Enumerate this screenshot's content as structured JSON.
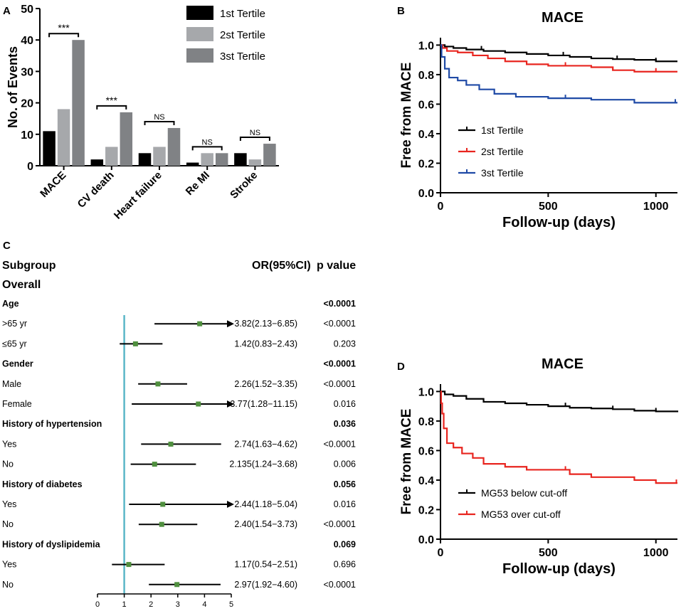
{
  "chart_data": [
    {
      "panel": "A",
      "type": "bar",
      "title": "",
      "ylabel": "No. of Events",
      "ylim": [
        0,
        50
      ],
      "yticks": [
        0,
        10,
        20,
        30,
        40,
        50
      ],
      "categories": [
        "MACE",
        "CV death",
        "Heart failure",
        "Re MI",
        "Stroke"
      ],
      "series": [
        {
          "name": "1st Tertile",
          "color": "#000000",
          "values": [
            11,
            2,
            4,
            1,
            4
          ]
        },
        {
          "name": "2st Tertile",
          "color": "#a6a8ab",
          "values": [
            18,
            6,
            6,
            4,
            2
          ]
        },
        {
          "name": "3st Tertile",
          "color": "#808285",
          "values": [
            40,
            17,
            12,
            4,
            7
          ]
        }
      ],
      "significance": [
        "***",
        "***",
        "NS",
        "NS",
        "NS"
      ],
      "legend": "top-right"
    },
    {
      "panel": "B",
      "type": "line",
      "title": "MACE",
      "xlabel": "Follow-up (days)",
      "ylabel": "Free from MACE",
      "xlim": [
        0,
        1100
      ],
      "ylim": [
        0,
        1.05
      ],
      "xticks": [
        0,
        500,
        1000
      ],
      "yticks": [
        "0.0",
        "0.2",
        "0.4",
        "0.6",
        "0.8",
        "1.0"
      ],
      "series": [
        {
          "name": "1st Tertile",
          "color": "#000000",
          "x": [
            0,
            20,
            60,
            120,
            200,
            300,
            400,
            500,
            600,
            700,
            800,
            900,
            1000,
            1100
          ],
          "y": [
            1.0,
            0.99,
            0.98,
            0.97,
            0.96,
            0.95,
            0.94,
            0.93,
            0.92,
            0.91,
            0.905,
            0.9,
            0.89,
            0.89
          ],
          "censor": [
            190,
            570,
            820,
            1000
          ]
        },
        {
          "name": "2st Tertile",
          "color": "#e8251f",
          "x": [
            0,
            10,
            30,
            80,
            150,
            220,
            300,
            400,
            500,
            700,
            800,
            900,
            1100
          ],
          "y": [
            1.0,
            0.98,
            0.96,
            0.95,
            0.93,
            0.91,
            0.89,
            0.87,
            0.86,
            0.85,
            0.83,
            0.82,
            0.82
          ],
          "censor": [
            580,
            800,
            1000
          ]
        },
        {
          "name": "3st Tertile",
          "color": "#1f4aa6",
          "x": [
            0,
            5,
            20,
            40,
            80,
            120,
            180,
            250,
            350,
            500,
            700,
            900,
            1100
          ],
          "y": [
            1.0,
            0.92,
            0.84,
            0.78,
            0.76,
            0.73,
            0.7,
            0.67,
            0.65,
            0.64,
            0.63,
            0.61,
            0.61
          ],
          "censor": [
            580,
            1090
          ]
        }
      ],
      "legend": "bottom-left"
    },
    {
      "panel": "C",
      "type": "forest",
      "header": {
        "subgroup": "Subgroup",
        "or": "OR(95%CI)",
        "p": "p value"
      },
      "overall_label": "Overall",
      "xlim": [
        0,
        5
      ],
      "xticks": [
        0,
        1,
        2,
        3,
        4,
        5
      ],
      "reference": 1,
      "rows": [
        {
          "label": "Age",
          "group": true,
          "p": "<0.0001"
        },
        {
          "label": ">65 yr",
          "or": 3.82,
          "lo": 2.13,
          "hi": 6.85,
          "text": "3.82(2.13−6.85)",
          "p": "<0.0001"
        },
        {
          "label": "≤65 yr",
          "or": 1.42,
          "lo": 0.83,
          "hi": 2.43,
          "text": "1.42(0.83−2.43)",
          "p": "0.203"
        },
        {
          "label": "Gender",
          "group": true,
          "p": "<0.0001"
        },
        {
          "label": "Male",
          "or": 2.26,
          "lo": 1.52,
          "hi": 3.35,
          "text": "2.26(1.52−3.35)",
          "p": "<0.0001"
        },
        {
          "label": "Female",
          "or": 3.77,
          "lo": 1.28,
          "hi": 11.15,
          "text": "3.77(1.28−11.15)",
          "p": "0.016"
        },
        {
          "label": "History of hypertension",
          "group": true,
          "p": "0.036"
        },
        {
          "label": "Yes",
          "or": 2.74,
          "lo": 1.63,
          "hi": 4.62,
          "text": "2.74(1.63−4.62)",
          "p": "<0.0001"
        },
        {
          "label": "No",
          "or": 2.135,
          "lo": 1.24,
          "hi": 3.68,
          "text": "2.135(1.24−3.68)",
          "p": "0.006"
        },
        {
          "label": "History of diabetes",
          "group": true,
          "p": "0.056"
        },
        {
          "label": "Yes",
          "or": 2.44,
          "lo": 1.18,
          "hi": 5.04,
          "text": "2.44(1.18−5.04)",
          "p": "0.016"
        },
        {
          "label": "No",
          "or": 2.4,
          "lo": 1.54,
          "hi": 3.73,
          "text": "2.40(1.54−3.73)",
          "p": "<0.0001"
        },
        {
          "label": "History of dyslipidemia",
          "group": true,
          "p": "0.069"
        },
        {
          "label": "Yes",
          "or": 1.17,
          "lo": 0.54,
          "hi": 2.51,
          "text": "1.17(0.54−2.51)",
          "p": "0.696"
        },
        {
          "label": "No",
          "or": 2.97,
          "lo": 1.92,
          "hi": 4.6,
          "text": "2.97(1.92−4.60)",
          "p": "<0.0001"
        }
      ],
      "colors": {
        "marker": "#4f8f3e",
        "reference_line": "#5bb7c8",
        "ci": "#000000"
      }
    },
    {
      "panel": "D",
      "type": "line",
      "title": "MACE",
      "xlabel": "Follow-up (days)",
      "ylabel": "Free from MACE",
      "xlim": [
        0,
        1100
      ],
      "ylim": [
        0,
        1.05
      ],
      "xticks": [
        0,
        500,
        1000
      ],
      "yticks": [
        "0.0",
        "0.2",
        "0.4",
        "0.6",
        "0.8",
        "1.0"
      ],
      "series": [
        {
          "name": "MG53 below cut-off",
          "color": "#000000",
          "x": [
            0,
            20,
            60,
            120,
            200,
            300,
            400,
            500,
            600,
            700,
            800,
            900,
            1000,
            1100
          ],
          "y": [
            1.0,
            0.98,
            0.97,
            0.95,
            0.93,
            0.92,
            0.91,
            0.9,
            0.89,
            0.885,
            0.88,
            0.87,
            0.865,
            0.86
          ],
          "censor": [
            580,
            800,
            1000
          ]
        },
        {
          "name": "MG53 over cut-off",
          "color": "#e8251f",
          "x": [
            0,
            3,
            8,
            15,
            30,
            60,
            100,
            150,
            200,
            300,
            400,
            600,
            700,
            900,
            1000,
            1100
          ],
          "y": [
            1.0,
            0.92,
            0.85,
            0.75,
            0.65,
            0.62,
            0.58,
            0.55,
            0.51,
            0.49,
            0.47,
            0.44,
            0.42,
            0.4,
            0.38,
            0.38
          ],
          "censor": [
            580,
            1095
          ]
        }
      ],
      "legend": "bottom-left"
    }
  ],
  "panel_letters": {
    "a": "A",
    "b": "B",
    "c": "C",
    "d": "D"
  }
}
